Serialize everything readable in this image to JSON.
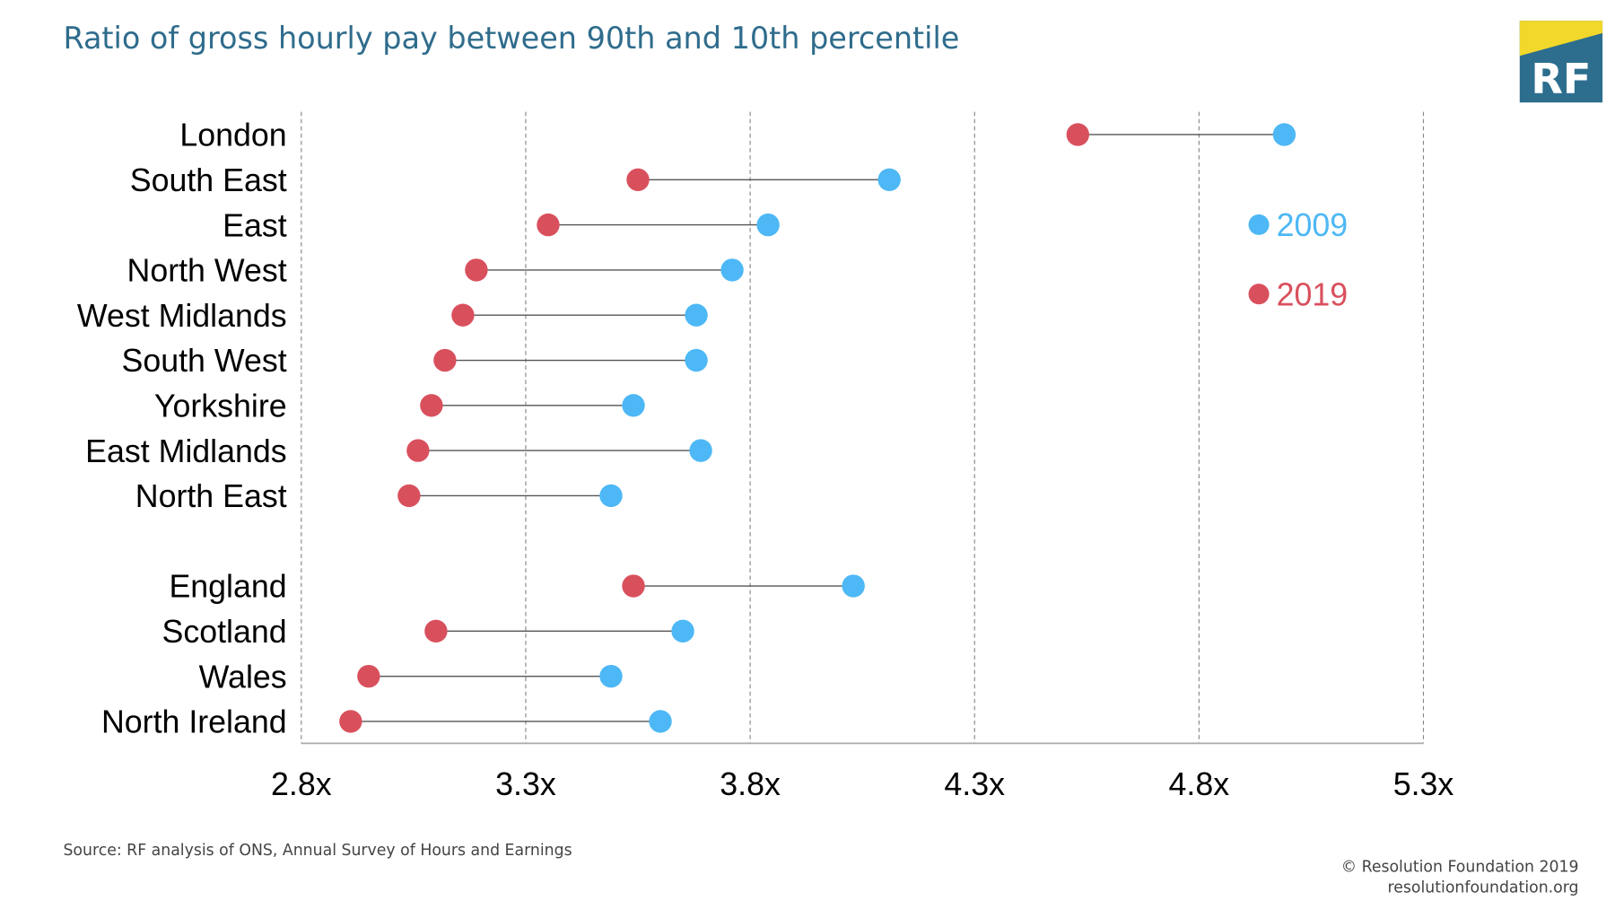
{
  "chart_data": {
    "type": "dumbbell",
    "title": "Ratio of gross hourly pay between 90th and 10th percentile",
    "categories": [
      "London",
      "South East",
      "East",
      "North West",
      "West Midlands",
      "South West",
      "Yorkshire",
      "East Midlands",
      "North East",
      null,
      "England",
      "Scotland",
      "Wales",
      "North Ireland"
    ],
    "series": [
      {
        "name": "2009",
        "color": "#4db8f5",
        "values": [
          4.99,
          4.11,
          3.84,
          3.76,
          3.68,
          3.68,
          3.54,
          3.69,
          3.49,
          null,
          4.03,
          3.65,
          3.49,
          3.6
        ]
      },
      {
        "name": "2019",
        "color": "#d9505d",
        "values": [
          4.53,
          3.55,
          3.35,
          3.19,
          3.16,
          3.12,
          3.09,
          3.06,
          3.04,
          null,
          3.54,
          3.1,
          2.95,
          2.91
        ]
      }
    ],
    "xlim": [
      2.8,
      5.3
    ],
    "xticks": [
      {
        "value": 2.8,
        "label": "2.8x"
      },
      {
        "value": 3.3,
        "label": "3.3x"
      },
      {
        "value": 3.8,
        "label": "3.8x"
      },
      {
        "value": 4.3,
        "label": "4.3x"
      },
      {
        "value": 4.8,
        "label": "4.8x"
      },
      {
        "value": 5.3,
        "label": "5.3x"
      }
    ],
    "grid": true,
    "legend": "upper right",
    "source": "Source: RF analysis of ONS, Annual Survey of Hours and Earnings"
  },
  "footer": [
    "© Resolution Foundation 2019",
    "resolutionfoundation.org"
  ],
  "logo": "RF"
}
